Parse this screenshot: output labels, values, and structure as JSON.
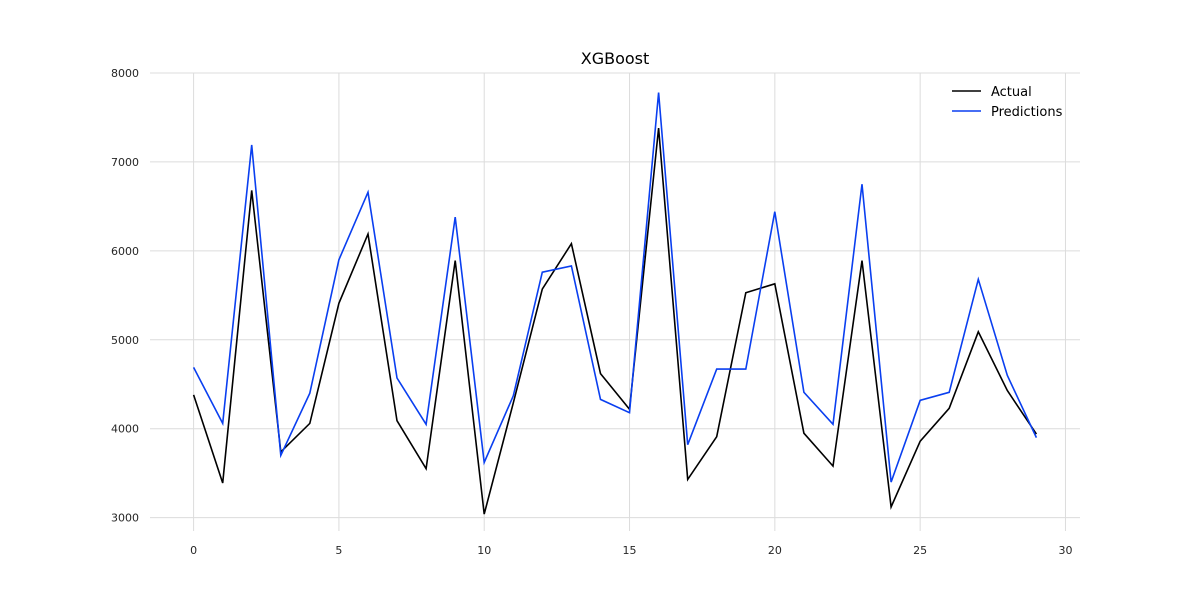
{
  "chart_data": {
    "type": "line",
    "title": "XGBoost",
    "xlabel": "",
    "ylabel": "",
    "xlim": [
      -1.5,
      30.5
    ],
    "ylim": [
      2850,
      8000
    ],
    "x_ticks": [
      0,
      5,
      10,
      15,
      20,
      25,
      30
    ],
    "y_ticks": [
      3000,
      4000,
      5000,
      6000,
      7000,
      8000
    ],
    "x_tick_labels": [
      "0",
      "5",
      "10",
      "15",
      "20",
      "25",
      "30"
    ],
    "y_tick_labels": [
      "3000",
      "4000",
      "5000",
      "6000",
      "7000",
      "8000"
    ],
    "grid": true,
    "legend_position": "top-right",
    "x": [
      0,
      1,
      2,
      3,
      4,
      5,
      6,
      7,
      8,
      9,
      10,
      11,
      12,
      13,
      14,
      15,
      16,
      17,
      18,
      19,
      20,
      21,
      22,
      23,
      24,
      25,
      26,
      27,
      28,
      29
    ],
    "series": [
      {
        "name": "Actual",
        "color": "#000000",
        "values": [
          4380,
          3390,
          6680,
          3740,
          4060,
          5410,
          6190,
          4090,
          3550,
          5890,
          3040,
          4290,
          5570,
          6080,
          4620,
          4220,
          7380,
          3430,
          3910,
          5530,
          5630,
          3950,
          3580,
          5890,
          3120,
          3860,
          4230,
          5090,
          4430,
          3940
        ]
      },
      {
        "name": "Predictions",
        "color": "#0a3ff0",
        "values": [
          4690,
          4060,
          7190,
          3700,
          4400,
          5900,
          6660,
          4570,
          4050,
          6380,
          3620,
          4370,
          5760,
          5830,
          4330,
          4180,
          7780,
          3820,
          4670,
          4670,
          6440,
          4410,
          4050,
          6750,
          3400,
          4320,
          4410,
          5680,
          4600,
          3900
        ]
      }
    ]
  }
}
